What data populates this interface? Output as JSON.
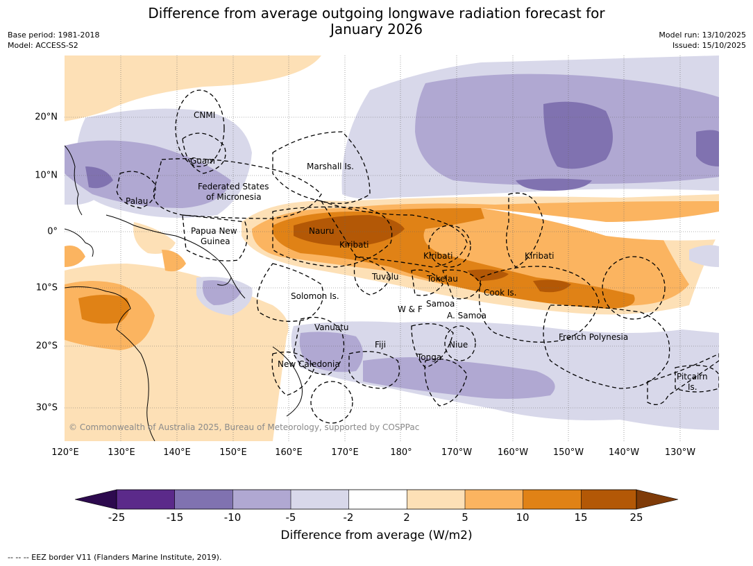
{
  "header": {
    "title_line1": "Difference from average outgoing longwave radiation forecast for",
    "title_line2": "January 2026",
    "base_period": "Base period: 1981-2018",
    "model": "Model: ACCESS-S2",
    "model_run": "Model run: 13/10/2025",
    "issued": "Issued: 15/10/2025"
  },
  "axes": {
    "lon_labels": [
      "120°E",
      "130°E",
      "140°E",
      "150°E",
      "160°E",
      "170°E",
      "180°",
      "170°W",
      "160°W",
      "150°W",
      "140°W",
      "130°W"
    ],
    "lat_labels": [
      "20°N",
      "10°N",
      "0°",
      "10°S",
      "20°S",
      "30°S"
    ]
  },
  "regions": {
    "cnmi": "CNMI",
    "guam": "Guam",
    "marshall": "Marshall Is.",
    "fsm_1": "Federated States",
    "fsm_2": "of Micronesia",
    "palau": "Palau",
    "png_1": "Papua New",
    "png_2": "Guinea",
    "nauru": "Nauru",
    "kiribati_w": "Kiribati",
    "kiribati_c": "Kiribati",
    "kiribati_e": "Kiribati",
    "tuvalu": "Tuvalu",
    "tokelau": "Tokelau",
    "solomon": "Solomon Is.",
    "wf": "W & F",
    "samoa": "Samoa",
    "asamoa": "A. Samoa",
    "cook": "Cook Is.",
    "vanuatu": "Vanuatu",
    "fiji": "Fiji",
    "niue": "Niue",
    "tonga": "Tonga",
    "french_polynesia": "French Polynesia",
    "new_caledonia": "New Caledonia",
    "pitcairn_1": "Pitcairn",
    "pitcairn_2": "Is."
  },
  "credit": "© Commonwealth of Australia 2025, Bureau of Meteorology, supported by COSPPac",
  "colorbar": {
    "title": "Difference from average (W/m2)",
    "tick_labels": [
      "-25",
      "-15",
      "-10",
      "-5",
      "-2",
      "2",
      "5",
      "10",
      "15",
      "25"
    ],
    "colors": {
      "lt_m25": "#2d0a4e",
      "m25_m15": "#5b2a8a",
      "m15_m10": "#8072b0",
      "m10_m5": "#b0a8d2",
      "m5_m2": "#d8d8ea",
      "m2_2": "#ffffff",
      "p2_5": "#fde0b6",
      "p5_10": "#fbb460",
      "p10_15": "#e08216",
      "p15_25": "#b35806",
      "gt_25": "#7f3b08"
    }
  },
  "footer": "--  --  -- EEZ border V11 (Flanders Marine Institute, 2019)."
}
